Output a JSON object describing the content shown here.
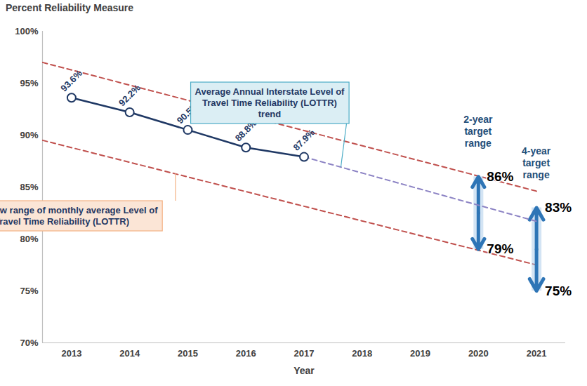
{
  "chart_data": {
    "type": "line",
    "xlabel": "Year",
    "ylabel": "Percent Reliability Measure",
    "xlim": [
      2012.5,
      2021.5
    ],
    "xticks": [
      2013,
      2014,
      2015,
      2016,
      2017,
      2018,
      2019,
      2020,
      2021
    ],
    "ylim": [
      70,
      100
    ],
    "yticks": [
      {
        "value": 70,
        "label": "70%"
      },
      {
        "value": 75,
        "label": "75%"
      },
      {
        "value": 80,
        "label": "80%"
      },
      {
        "value": 85,
        "label": "85%"
      },
      {
        "value": 90,
        "label": "90%"
      },
      {
        "value": 95,
        "label": "95%"
      },
      {
        "value": 100,
        "label": "100%"
      }
    ],
    "grid": false,
    "series": [
      {
        "name": "Average Annual Interstate Level of Travel Time Reliability (LOTTR) trend",
        "color": "#8c83c4",
        "line_style": "dashed",
        "marker": "none",
        "x": [
          2017,
          2021
        ],
        "values": [
          87.9,
          81.7
        ]
      },
      {
        "color": "#1f3864",
        "line_style": "solid",
        "marker": "circle",
        "data_labels": true,
        "x": [
          2013,
          2014,
          2015,
          2016,
          2017
        ],
        "values": [
          93.6,
          92.2,
          90.5,
          88.8,
          87.9
        ],
        "value_labels": [
          "93.6%",
          "92.2%",
          "90.5%",
          "88.8%",
          "87.9%"
        ]
      }
    ],
    "range": {
      "name": "High/Low range of monthly average Level of Travel Time Reliability (LOTTR)",
      "color": "#c0504d",
      "line_style": "dashed",
      "x": [
        2012.5,
        2021
      ],
      "high": [
        97.0,
        84.6
      ],
      "low": [
        89.5,
        77.5
      ]
    },
    "targets": [
      {
        "label": "2-year target range",
        "x": 2020,
        "color": "#2e75b6",
        "high": {
          "value": 86,
          "label": "86%"
        },
        "low": {
          "value": 79,
          "label": "79%"
        }
      },
      {
        "label": "4-year target range",
        "x": 2021,
        "color": "#2e75b6",
        "high": {
          "value": 83,
          "label": "83%"
        },
        "low": {
          "value": 75,
          "label": "75%"
        }
      }
    ]
  }
}
